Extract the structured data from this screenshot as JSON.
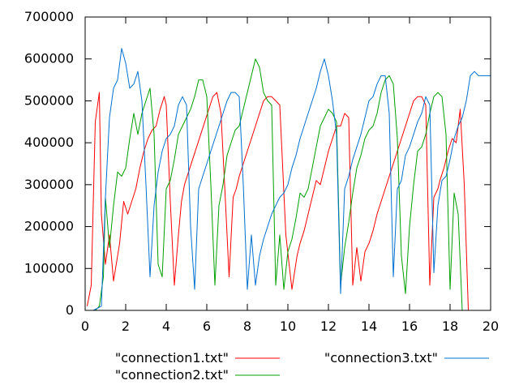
{
  "chart_data": {
    "type": "line",
    "title": "",
    "xlabel": "",
    "ylabel": "",
    "xlim": [
      0,
      20
    ],
    "ylim": [
      0,
      700000
    ],
    "xticks": [
      0,
      2,
      4,
      6,
      8,
      10,
      12,
      14,
      16,
      18,
      20
    ],
    "yticks": [
      0,
      100000,
      200000,
      300000,
      400000,
      500000,
      600000,
      700000
    ],
    "xtick_labels": [
      "0",
      "2",
      "4",
      "6",
      "8",
      "10",
      "12",
      "14",
      "16",
      "18",
      "20"
    ],
    "ytick_labels": [
      "0",
      "100000",
      "200000",
      "300000",
      "400000",
      "500000",
      "600000",
      "700000"
    ],
    "grid": false,
    "legend_position": "bottom",
    "series": [
      {
        "name": "\"connection1.txt\"",
        "color": "#ff0000",
        "x": [
          0.1,
          0.3,
          0.5,
          0.7,
          0.8,
          1.0,
          1.2,
          1.4,
          1.6,
          1.7,
          1.9,
          2.1,
          2.3,
          2.5,
          2.7,
          2.9,
          3.1,
          3.3,
          3.5,
          3.7,
          3.9,
          4.0,
          4.2,
          4.4,
          4.6,
          4.75,
          4.9,
          5.1,
          5.3,
          5.5,
          5.7,
          5.9,
          6.1,
          6.3,
          6.5,
          6.7,
          6.9,
          7.1,
          7.3,
          7.45,
          7.6,
          7.8,
          8.0,
          8.2,
          8.4,
          8.6,
          8.8,
          9.0,
          9.2,
          9.4,
          9.6,
          9.9,
          10.2,
          10.45,
          10.6,
          10.8,
          11.0,
          11.2,
          11.4,
          11.6,
          11.8,
          12.0,
          12.2,
          12.4,
          12.6,
          12.8,
          13.0,
          13.2,
          13.4,
          13.6,
          13.8,
          14.0,
          14.2,
          14.4,
          14.6,
          14.8,
          15.0,
          15.2,
          15.4,
          15.6,
          15.8,
          16.0,
          16.2,
          16.4,
          16.6,
          16.8,
          17.0,
          17.2,
          17.4,
          17.5,
          17.7,
          17.9,
          18.1,
          18.3,
          18.5,
          18.7,
          18.9,
          19.0,
          19.2,
          19.4,
          19.6
        ],
        "y": [
          10000,
          60000,
          450000,
          520000,
          230000,
          110000,
          180000,
          70000,
          130000,
          160000,
          260000,
          230000,
          260000,
          290000,
          340000,
          380000,
          410000,
          430000,
          440000,
          480000,
          510000,
          490000,
          260000,
          60000,
          180000,
          260000,
          300000,
          330000,
          360000,
          390000,
          420000,
          450000,
          480000,
          510000,
          520000,
          470000,
          280000,
          80000,
          270000,
          290000,
          320000,
          350000,
          380000,
          410000,
          440000,
          470000,
          500000,
          510000,
          510000,
          500000,
          490000,
          180000,
          50000,
          130000,
          160000,
          190000,
          230000,
          270000,
          310000,
          300000,
          340000,
          380000,
          410000,
          440000,
          440000,
          470000,
          460000,
          60000,
          150000,
          70000,
          140000,
          160000,
          190000,
          230000,
          260000,
          290000,
          320000,
          350000,
          380000,
          410000,
          440000,
          470000,
          500000,
          510000,
          510000,
          490000,
          60000,
          270000,
          290000,
          310000,
          340000,
          380000,
          410000,
          400000,
          480000,
          300000,
          0,
          0,
          0,
          0,
          0
        ]
      },
      {
        "name": "\"connection2.txt\"",
        "color": "#00a000",
        "x": [
          0.5,
          0.7,
          0.9,
          1.0,
          1.2,
          1.4,
          1.6,
          1.8,
          2.0,
          2.2,
          2.4,
          2.6,
          2.8,
          3.0,
          3.2,
          3.4,
          3.6,
          3.8,
          4.0,
          4.2,
          4.4,
          4.6,
          4.8,
          5.0,
          5.2,
          5.4,
          5.6,
          5.8,
          6.0,
          6.2,
          6.4,
          6.6,
          6.8,
          7.0,
          7.2,
          7.4,
          7.6,
          7.8,
          8.0,
          8.2,
          8.4,
          8.6,
          8.8,
          9.0,
          9.2,
          9.4,
          9.6,
          9.8,
          10.0,
          10.2,
          10.4,
          10.6,
          10.8,
          11.0,
          11.2,
          11.4,
          11.6,
          11.8,
          12.0,
          12.2,
          12.4,
          12.6,
          12.8,
          13.0,
          13.2,
          13.4,
          13.6,
          13.8,
          14.0,
          14.2,
          14.4,
          14.6,
          14.8,
          15.0,
          15.2,
          15.4,
          15.6,
          15.8,
          16.0,
          16.2,
          16.4,
          16.6,
          16.8,
          17.0,
          17.2,
          17.4,
          17.6,
          17.8,
          18.0,
          18.2,
          18.4,
          18.6,
          18.8,
          19.0,
          19.2,
          19.4,
          19.6,
          19.8
        ],
        "y": [
          0,
          10000,
          80000,
          270000,
          150000,
          250000,
          330000,
          320000,
          340000,
          410000,
          470000,
          420000,
          470000,
          500000,
          530000,
          420000,
          110000,
          80000,
          290000,
          310000,
          360000,
          420000,
          440000,
          460000,
          480000,
          510000,
          550000,
          550000,
          510000,
          300000,
          60000,
          250000,
          300000,
          370000,
          400000,
          430000,
          440000,
          480000,
          520000,
          560000,
          600000,
          580000,
          520000,
          500000,
          490000,
          60000,
          180000,
          50000,
          140000,
          170000,
          220000,
          280000,
          270000,
          290000,
          340000,
          390000,
          440000,
          460000,
          480000,
          470000,
          450000,
          60000,
          150000,
          210000,
          280000,
          340000,
          370000,
          410000,
          430000,
          440000,
          470000,
          520000,
          550000,
          560000,
          540000,
          410000,
          130000,
          40000,
          200000,
          300000,
          380000,
          390000,
          420000,
          470000,
          510000,
          520000,
          510000,
          420000,
          50000,
          280000,
          230000,
          0,
          0,
          0,
          0,
          0,
          0,
          0
        ],
        "x_fix": null
      },
      {
        "name": "\"connection3.txt\"",
        "color": "#0070d0",
        "x": [
          0.4,
          0.6,
          0.8,
          1.0,
          1.2,
          1.4,
          1.6,
          1.8,
          2.0,
          2.2,
          2.4,
          2.6,
          2.8,
          3.0,
          3.2,
          3.4,
          3.6,
          3.8,
          4.0,
          4.2,
          4.4,
          4.6,
          4.8,
          5.0,
          5.2,
          5.4,
          5.6,
          5.8,
          6.0,
          6.2,
          6.4,
          6.6,
          6.8,
          7.0,
          7.2,
          7.4,
          7.6,
          7.8,
          8.0,
          8.2,
          8.4,
          8.6,
          8.8,
          9.0,
          9.2,
          9.4,
          9.6,
          9.8,
          10.0,
          10.2,
          10.4,
          10.6,
          10.8,
          11.0,
          11.2,
          11.4,
          11.6,
          11.8,
          12.0,
          12.2,
          12.4,
          12.6,
          12.8,
          13.0,
          13.2,
          13.4,
          13.6,
          13.8,
          14.0,
          14.2,
          14.4,
          14.6,
          14.8,
          15.0,
          15.2,
          15.4,
          15.6,
          15.8,
          16.0,
          16.2,
          16.4,
          16.6,
          16.8,
          17.0,
          17.2,
          17.4,
          17.6,
          17.8,
          18.0,
          18.2,
          18.4,
          18.6,
          18.8,
          19.0,
          19.2,
          19.4,
          19.6,
          19.8,
          20.0
        ],
        "y": [
          0,
          5000,
          10000,
          270000,
          460000,
          530000,
          550000,
          625000,
          590000,
          530000,
          540000,
          570000,
          500000,
          300000,
          80000,
          250000,
          330000,
          380000,
          410000,
          420000,
          440000,
          490000,
          510000,
          490000,
          200000,
          50000,
          290000,
          320000,
          350000,
          380000,
          410000,
          440000,
          470000,
          500000,
          520000,
          520000,
          510000,
          300000,
          50000,
          180000,
          60000,
          130000,
          170000,
          200000,
          230000,
          250000,
          270000,
          280000,
          300000,
          340000,
          370000,
          410000,
          440000,
          470000,
          500000,
          530000,
          570000,
          600000,
          560000,
          500000,
          420000,
          40000,
          290000,
          320000,
          360000,
          390000,
          420000,
          460000,
          500000,
          510000,
          540000,
          560000,
          560000,
          470000,
          80000,
          290000,
          310000,
          370000,
          390000,
          420000,
          450000,
          470000,
          510000,
          490000,
          90000,
          250000,
          310000,
          320000,
          360000,
          410000,
          440000,
          460000,
          500000,
          560000,
          570000,
          560000,
          560000,
          560000,
          560000
        ]
      }
    ]
  }
}
